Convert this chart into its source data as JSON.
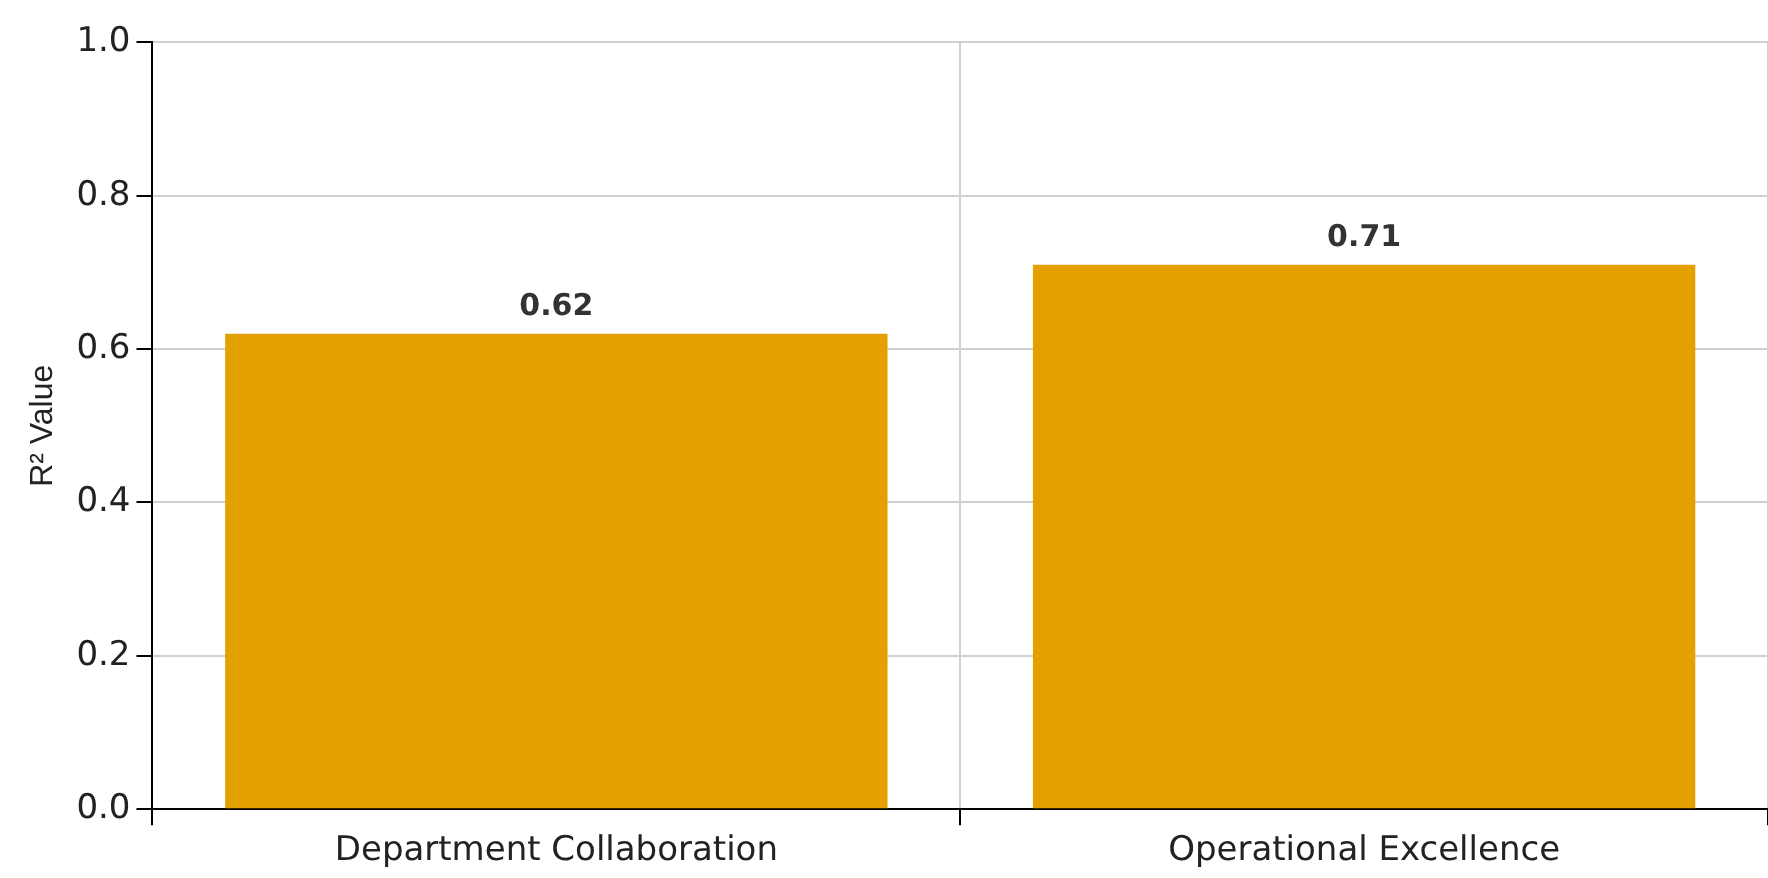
{
  "chart_data": {
    "type": "bar",
    "ylabel": "R² Value",
    "categories": [
      "Department Collaboration",
      "Operational Excellence"
    ],
    "values": [
      0.62,
      0.71
    ],
    "color": "#e49f00",
    "ylim": [
      0,
      1
    ],
    "yticks": [
      {
        "value": 0,
        "label": "0.0"
      },
      {
        "value": 0.2,
        "label": "0.2"
      },
      {
        "value": 0.4,
        "label": "0.4"
      },
      {
        "value": 0.6,
        "label": "0.6"
      },
      {
        "value": 0.8,
        "label": "0.8"
      },
      {
        "value": 1,
        "label": "1.0"
      }
    ],
    "grid": true,
    "data_labels": true
  }
}
